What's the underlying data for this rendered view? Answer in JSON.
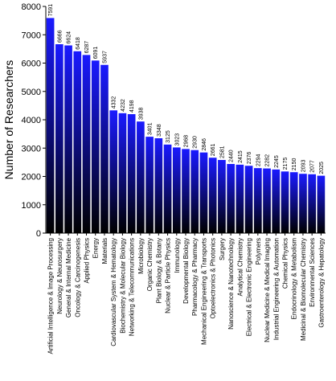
{
  "chart_data": {
    "type": "bar",
    "title": "",
    "xlabel": "",
    "ylabel": "Number of Researchers",
    "ylim": [
      0,
      8000
    ],
    "yticks": [
      0,
      1000,
      2000,
      3000,
      4000,
      5000,
      6000,
      7000,
      8000
    ],
    "grid": false,
    "legend": "none",
    "bar_gradient": [
      "#1a1aff",
      "#000000"
    ],
    "categories": [
      "Artificial Intelligence & Image Processing",
      "Neurology & Neurosurgery",
      "General & Internal Medicine",
      "Oncology & Carcinogenesis",
      "Applied Physics",
      "Energy",
      "Materials",
      "Cardiovascular System & Hematology",
      "Biochemistry & Molecular Biology",
      "Networking & Telecommunications",
      "Microbiology",
      "Organic Chemistry",
      "Plant Biology & Botany",
      "Nuclear & Particle Physics",
      "Immunology",
      "Developmental Biology",
      "Pharmacology & Pharmacy",
      "Mechanical Engineering & Transports",
      "Optoelectronics & Photonics",
      "Surgery",
      "Nanoscience & Nanotechnology",
      "Analytical Chemistry",
      "Electrical & Electronic Engineering",
      "Polymers",
      "Nuclear Medicine & Medical Imaging",
      "Industrial Engineering & Automation",
      "Chemical Physics",
      "Endocrinology & Metabolism",
      "Medicinal & Biomolecular Chemistry",
      "Environmental Sciences",
      "Gastroenterology & Hepatology"
    ],
    "values": [
      7591,
      6666,
      6624,
      6418,
      6287,
      6091,
      5937,
      4332,
      4232,
      4198,
      3938,
      3401,
      3348,
      3125,
      3023,
      2968,
      2930,
      2846,
      2661,
      2581,
      2440,
      2415,
      2376,
      2294,
      2282,
      2245,
      2175,
      2150,
      2093,
      2077,
      2025
    ]
  }
}
